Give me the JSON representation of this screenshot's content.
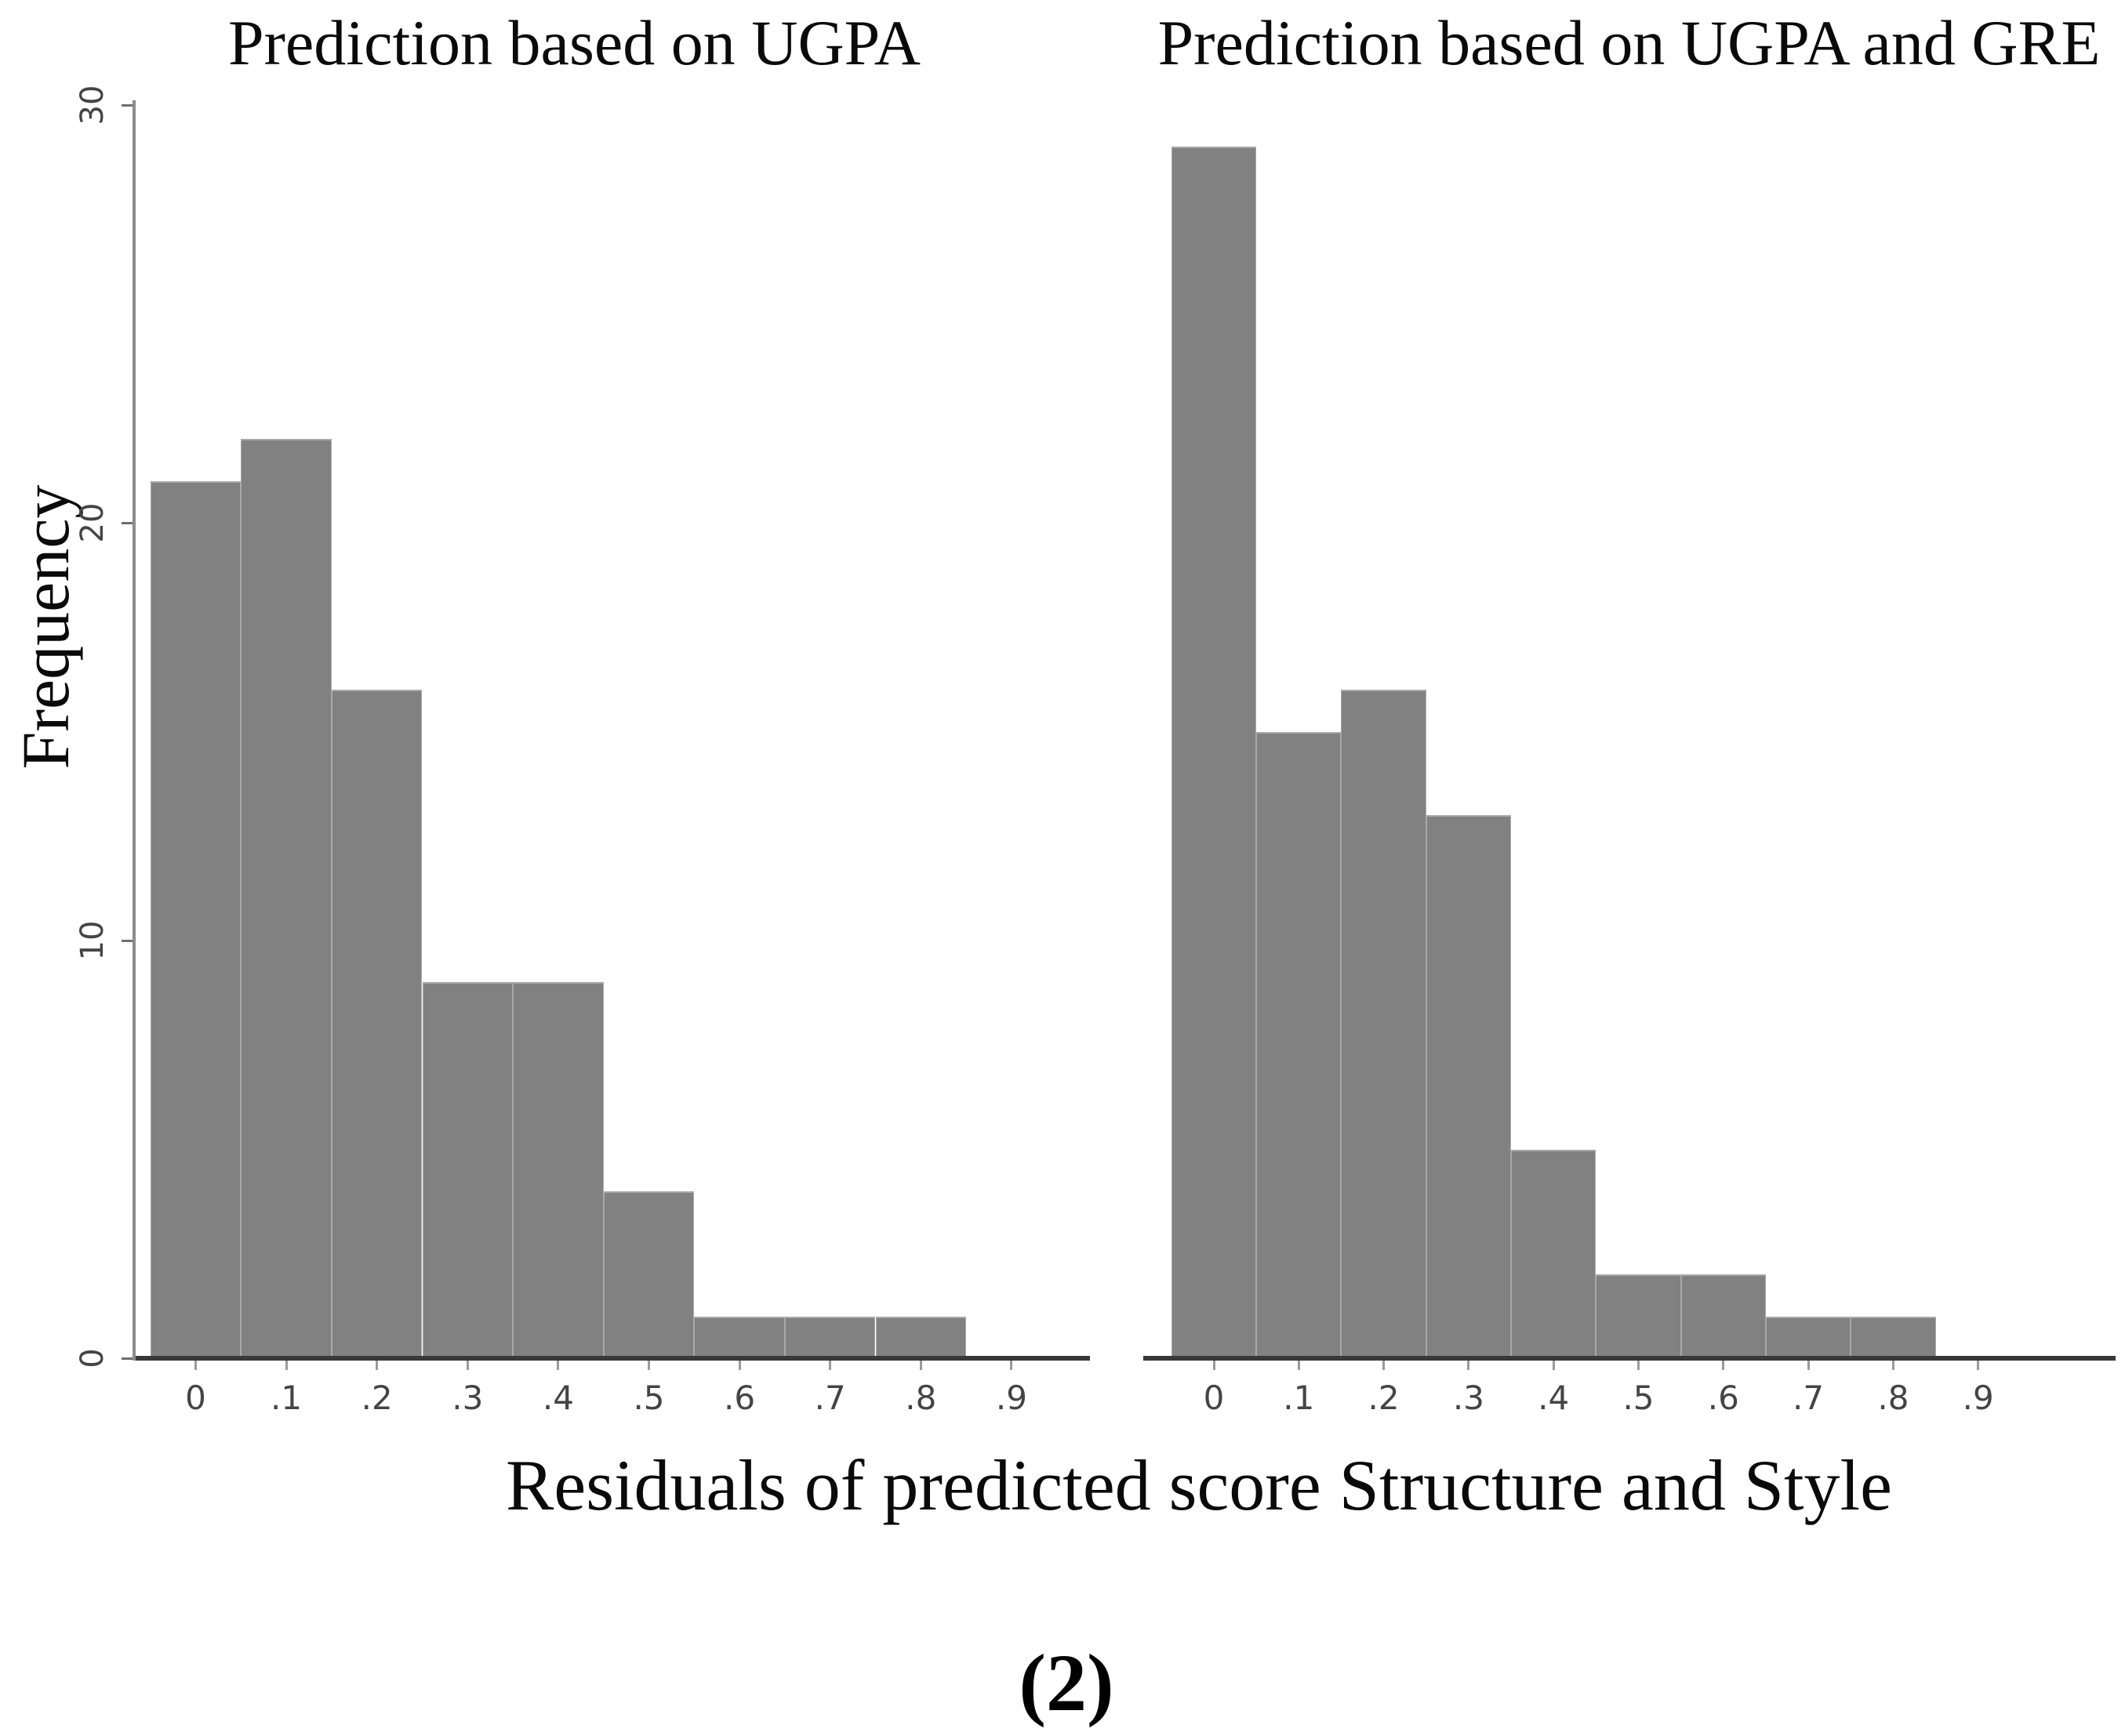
{
  "figure": {
    "caption": "(2)"
  },
  "chart_data": {
    "type": "bar",
    "subtype": "histogram-pair",
    "xlabel": "Residuals of predicted score Structure and Style",
    "ylabel": "Frequency",
    "ylim": [
      0,
      30
    ],
    "yticks": [
      "0",
      "10",
      "20",
      "30"
    ],
    "ytick_values": [
      0,
      10,
      20,
      30
    ],
    "x_tick_labels": [
      "0",
      ".1",
      ".2",
      ".3",
      ".4",
      ".5",
      ".6",
      ".7",
      ".8",
      ".9"
    ],
    "bin_centers": [
      0,
      0.1,
      0.2,
      0.3,
      0.4,
      0.5,
      0.6,
      0.7,
      0.8
    ],
    "bin_width": 0.1,
    "grid": "off",
    "legend": "none",
    "panels": [
      {
        "title": "Prediction based on UGPA",
        "values": [
          21,
          22,
          16,
          9,
          9,
          4,
          1,
          1,
          1
        ]
      },
      {
        "title": "Prediction based on UGPA and GRE",
        "values": [
          29,
          15,
          16,
          13,
          5,
          2,
          2,
          1,
          1
        ]
      }
    ],
    "colors": {
      "bar_fill": "#818181",
      "bar_edge": "#a9a9a9",
      "x_axis_line": "#383838",
      "y_axis_line": "#8c8c8c",
      "tick_label": "#444444",
      "text": "#000000",
      "background": "#ffffff"
    }
  }
}
